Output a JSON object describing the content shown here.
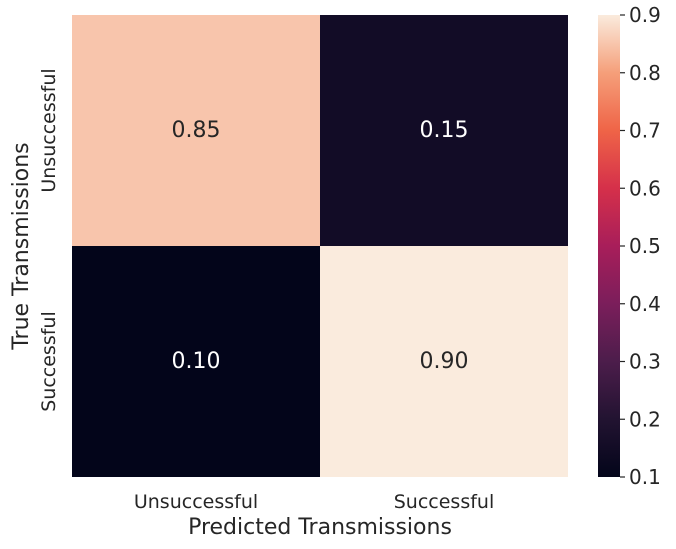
{
  "chart_data": {
    "type": "heatmap",
    "x_categories": [
      "Unsuccessful",
      "Successful"
    ],
    "y_categories": [
      "Unsuccessful",
      "Successful"
    ],
    "values": [
      [
        0.85,
        0.15
      ],
      [
        0.1,
        0.9
      ]
    ],
    "value_labels": [
      [
        "0.85",
        "0.15"
      ],
      [
        "0.10",
        "0.90"
      ]
    ],
    "xlabel": "Predicted Transmissions",
    "ylabel": "True Transmissions",
    "colormap": "rocket",
    "colorbar": {
      "min": 0.1,
      "max": 0.9,
      "ticks": [
        "0.1",
        "0.2",
        "0.3",
        "0.4",
        "0.5",
        "0.6",
        "0.7",
        "0.8",
        "0.9"
      ]
    }
  }
}
